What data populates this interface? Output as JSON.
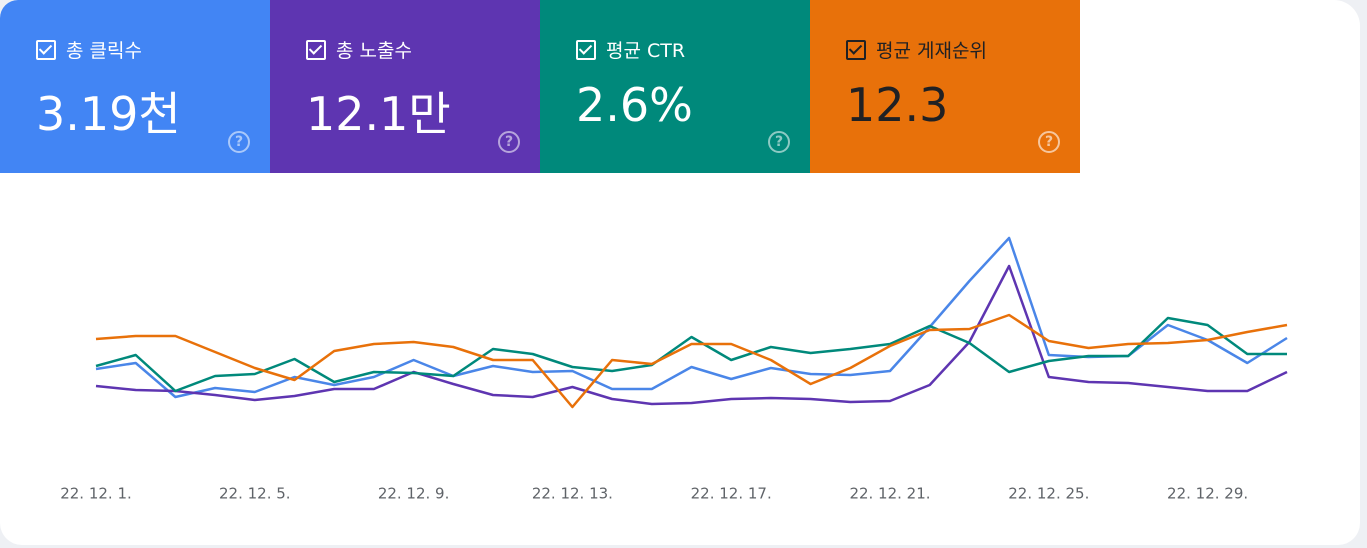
{
  "chart_data": {
    "type": "line",
    "categories": [
      "22. 12. 1.",
      null,
      null,
      null,
      "22. 12. 5.",
      null,
      null,
      null,
      "22. 12. 9.",
      null,
      null,
      null,
      "22. 12. 13.",
      null,
      null,
      null,
      "22. 12. 17.",
      null,
      null,
      null,
      "22. 12. 21.",
      null,
      null,
      null,
      "22. 12. 25.",
      null,
      null,
      null,
      "22. 12. 29.",
      null,
      null
    ],
    "ylim": [
      0,
      250
    ],
    "series": [
      {
        "name": "총 클릭수",
        "summary": "3.19천",
        "color": "#4a86e8",
        "tile_color": "#4285f4",
        "text_color": "#ffffff",
        "values": [
          81,
          87,
          53,
          62,
          58,
          73,
          65,
          73,
          90,
          74,
          84,
          78,
          79,
          61,
          61,
          83,
          71,
          82,
          76,
          75,
          79,
          123,
          169,
          212,
          95,
          93,
          94,
          125,
          110,
          87,
          112
        ]
      },
      {
        "name": "총 노출수",
        "summary": "12.1만",
        "color": "#5e35b1",
        "tile_color": "#5e35b1",
        "text_color": "#ffffff",
        "values": [
          64,
          60,
          59,
          55,
          50,
          54,
          61,
          61,
          78,
          66,
          55,
          53,
          63,
          51,
          46,
          47,
          51,
          52,
          51,
          48,
          49,
          65,
          108,
          184,
          73,
          68,
          67,
          63,
          59,
          59,
          78
        ]
      },
      {
        "name": "평균 CTR",
        "summary": "2.6%",
        "color": "#00897b",
        "tile_color": "#00897b",
        "text_color": "#ffffff",
        "values": [
          84,
          95,
          59,
          74,
          76,
          91,
          68,
          78,
          77,
          74,
          101,
          96,
          83,
          79,
          85,
          113,
          90,
          103,
          97,
          101,
          106,
          124,
          107,
          78,
          89,
          94,
          94,
          132,
          125,
          96,
          96
        ]
      },
      {
        "name": "평균 게재순위",
        "summary": "12.3",
        "color": "#e8710a",
        "tile_color": "#e8710a",
        "text_color": "#202124",
        "values": [
          111,
          114,
          114,
          98,
          82,
          70,
          99,
          106,
          108,
          103,
          90,
          90,
          43,
          90,
          86,
          106,
          106,
          90,
          66,
          82,
          104,
          120,
          121,
          135,
          109,
          102,
          106,
          107,
          110,
          118,
          125
        ]
      }
    ]
  }
}
